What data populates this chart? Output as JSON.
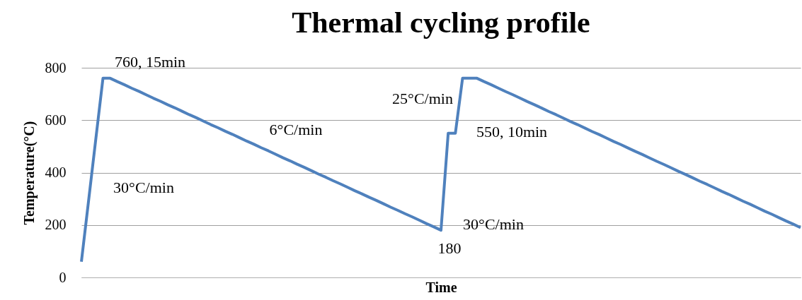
{
  "chart_data": {
    "type": "line",
    "title": "Thermal cycling profile",
    "xlabel": "Time",
    "ylabel": "Temperature(°C)",
    "categories": [
      null,
      null,
      null,
      null,
      null,
      null,
      null,
      null,
      null,
      null,
      null,
      null,
      null,
      null,
      null,
      null,
      null,
      null,
      null,
      null,
      null,
      null,
      null,
      null,
      null,
      null,
      null,
      null,
      null,
      null,
      null,
      null,
      null,
      null,
      null,
      null,
      null,
      null,
      null,
      null,
      null,
      null,
      null,
      null,
      null,
      null,
      null,
      null,
      null,
      null,
      null,
      null,
      null,
      null,
      null,
      null,
      null,
      null,
      null,
      null,
      null,
      null,
      null,
      null,
      null,
      null,
      null,
      null,
      null,
      null,
      null,
      null,
      null,
      null,
      null,
      null,
      null,
      null,
      null,
      null,
      null,
      null,
      null,
      null,
      null,
      null,
      null,
      null,
      null,
      null,
      null,
      null,
      null,
      null,
      null,
      null,
      null,
      null,
      null,
      null,
      null
    ],
    "series": [
      {
        "color": "#4f81bd",
        "values": [
          60,
          293,
          527,
          760,
          760,
          747,
          735,
          722,
          710,
          697,
          684,
          672,
          659,
          647,
          634,
          621,
          609,
          596,
          583,
          571,
          558,
          546,
          533,
          520,
          508,
          495,
          483,
          470,
          457,
          445,
          432,
          420,
          407,
          394,
          382,
          369,
          357,
          344,
          331,
          319,
          306,
          294,
          281,
          268,
          256,
          243,
          231,
          218,
          205,
          193,
          180,
          550,
          550,
          760,
          760,
          760,
          747,
          735,
          722,
          709,
          697,
          684,
          671,
          659,
          646,
          633,
          621,
          608,
          595,
          583,
          570,
          557,
          545,
          532,
          519,
          507,
          494,
          481,
          469,
          456,
          443,
          431,
          418,
          405,
          393,
          380,
          367,
          355,
          342,
          329,
          317,
          304,
          291,
          279,
          266,
          253,
          241,
          228,
          215,
          203,
          190
        ]
      }
    ],
    "ylim": [
      0,
      800
    ],
    "yticks": [
      0,
      200,
      400,
      600,
      800
    ],
    "grid": "y",
    "tick_labels": "y",
    "marker": "none",
    "line_style": "solid",
    "annotations": [
      "760, 15min",
      "30°C/min",
      "6°C/min",
      "180",
      "30°C/min",
      "25°C/min",
      "550, 10min"
    ]
  }
}
